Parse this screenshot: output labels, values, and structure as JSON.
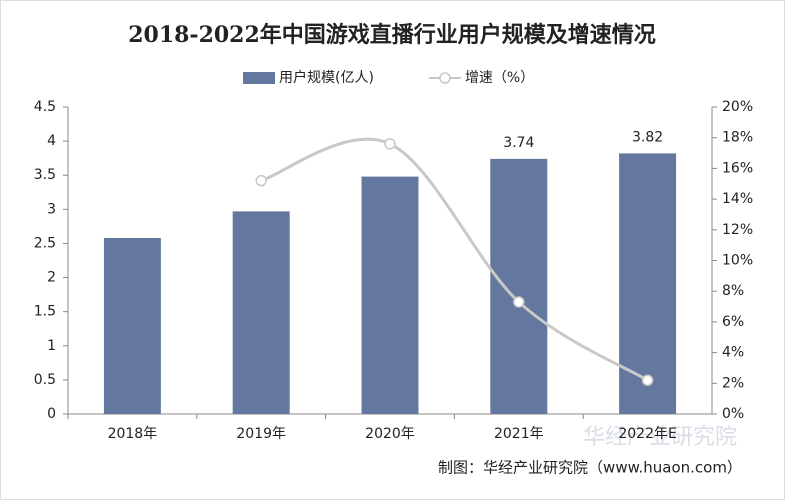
{
  "chart_data": {
    "type": "bar-line",
    "title": "2018-2022年中国游戏直播行业用户规模及增速情况",
    "categories": [
      "2018年",
      "2019年",
      "2020年",
      "2021年",
      "2022年E"
    ],
    "series": [
      {
        "name": "用户规模(亿人)",
        "type": "bar",
        "color": "#64789f",
        "values": [
          2.58,
          2.97,
          3.48,
          3.74,
          3.82
        ],
        "value_labels": [
          null,
          null,
          null,
          "3.74",
          "3.82"
        ]
      },
      {
        "name": "增速（%）",
        "type": "line",
        "axis": "y2",
        "color": "#c8c8c8",
        "values": [
          null,
          15.2,
          17.6,
          7.3,
          2.2
        ]
      }
    ],
    "ylim": [
      0,
      4.5
    ],
    "yticks": [
      0,
      0.5,
      1,
      1.5,
      2,
      2.5,
      3,
      3.5,
      4,
      4.5
    ],
    "y2lim": [
      0,
      20
    ],
    "y2ticks": [
      {
        "value": 0,
        "label": "0%"
      },
      {
        "value": 2,
        "label": "2%"
      },
      {
        "value": 4,
        "label": "4%"
      },
      {
        "value": 6,
        "label": "6%"
      },
      {
        "value": 8,
        "label": "8%"
      },
      {
        "value": 10,
        "label": "10%"
      },
      {
        "value": 12,
        "label": "12%"
      },
      {
        "value": 14,
        "label": "14%"
      },
      {
        "value": 16,
        "label": "16%"
      },
      {
        "value": 18,
        "label": "18%"
      },
      {
        "value": 20,
        "label": "20%"
      }
    ],
    "watermark": "华经产业研究院",
    "source": "制图：华经产业研究院（www.huaon.com）"
  }
}
